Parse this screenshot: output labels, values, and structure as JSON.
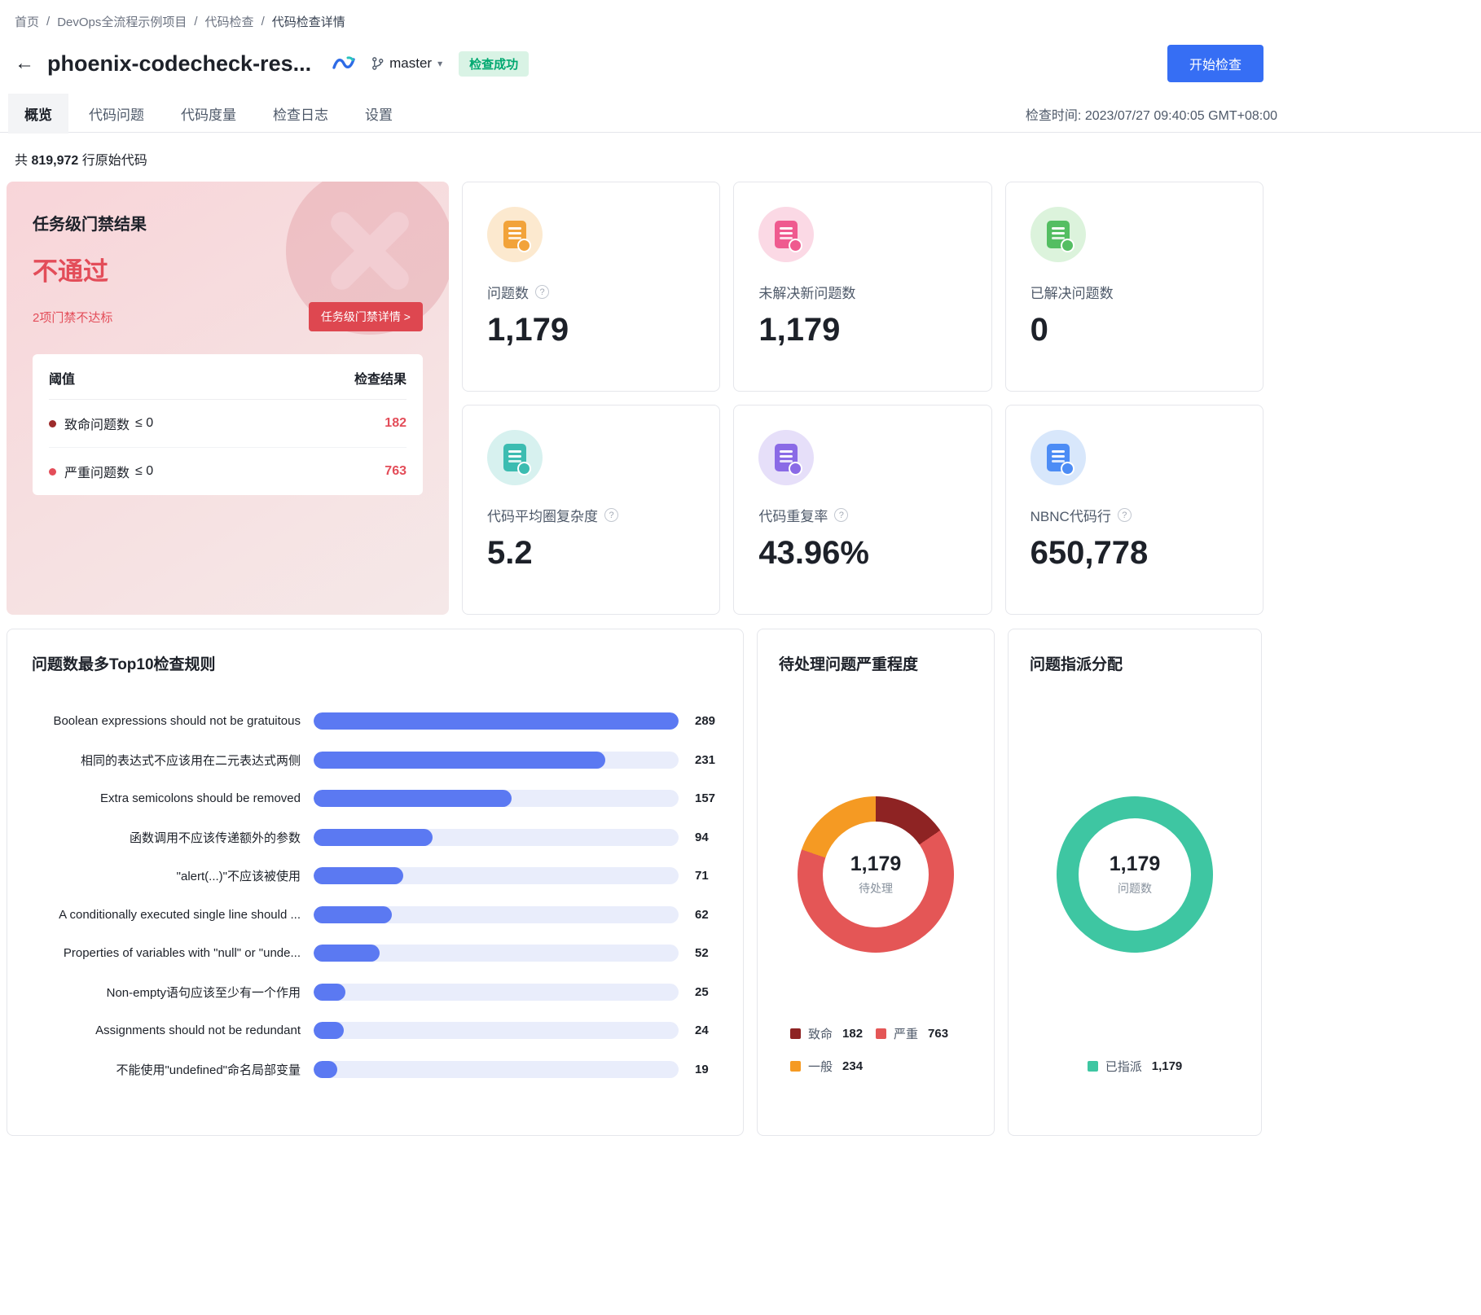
{
  "theme": {
    "accent_blue": "#366EF4",
    "danger_red": "#E34D59",
    "gate_button_bg": "#DE4750",
    "badge_bg": "#D9F3E5",
    "badge_text": "#00A870"
  },
  "icons": {
    "back": "←",
    "help": "?",
    "caret": "▾",
    "separator": "/"
  },
  "breadcrumb": {
    "items": [
      "首页",
      "DevOps全流程示例项目",
      "代码检查",
      "代码检查详情"
    ]
  },
  "header": {
    "title": "phoenix-codecheck-res...",
    "branch": "master",
    "status_badge": "检查成功",
    "start_button": "开始检查"
  },
  "tabs": {
    "items": [
      "概览",
      "代码问题",
      "代码度量",
      "检查日志",
      "设置"
    ],
    "active": "概览",
    "check_time": "检查时间: 2023/07/27 09:40:05 GMT+08:00"
  },
  "summary": {
    "prefix": "共",
    "count": "819,972",
    "suffix": "行原始代码"
  },
  "gate": {
    "title": "任务级门禁结果",
    "result": "不通过",
    "subtitle": "2项门禁不达标",
    "detail_button": "任务级门禁详情 >",
    "table": {
      "threshold_header": "阈值",
      "result_header": "检查结果",
      "rows": [
        {
          "name": "致命问题数",
          "op": "≤ 0",
          "value": "182",
          "dot_color": "#9D2B2B"
        },
        {
          "name": "严重问题数",
          "op": "≤ 0",
          "value": "763",
          "dot_color": "#E34D59"
        }
      ]
    }
  },
  "metrics": [
    {
      "label": "问题数",
      "value": "1,179",
      "has_help": true,
      "icon": "issues-icon",
      "icon_bg": "#FCE9CF",
      "icon_color": "#F2A33A"
    },
    {
      "label": "未解决新问题数",
      "value": "1,179",
      "has_help": false,
      "icon": "unresolved-icon",
      "icon_bg": "#FBD9E5",
      "icon_color": "#EF5A8F"
    },
    {
      "label": "已解决问题数",
      "value": "0",
      "has_help": false,
      "icon": "resolved-icon",
      "icon_bg": "#DCF3DC",
      "icon_color": "#54BE62"
    },
    {
      "label": "代码平均圈复杂度",
      "value": "5.2",
      "has_help": true,
      "icon": "complexity-icon",
      "icon_bg": "#D7F1EF",
      "icon_color": "#3CBCB1"
    },
    {
      "label": "代码重复率",
      "value": "43.96%",
      "has_help": true,
      "icon": "duplication-icon",
      "icon_bg": "#E6DFF9",
      "icon_color": "#8A6AE6"
    },
    {
      "label": "NBNC代码行",
      "value": "650,778",
      "has_help": true,
      "icon": "nbnc-icon",
      "icon_bg": "#D8E7FB",
      "icon_color": "#4C8CF5"
    }
  ],
  "chart_data": [
    {
      "type": "bar",
      "orientation": "horizontal",
      "title": "问题数最多Top10检查规则",
      "categories": [
        "Boolean expressions should not be gratuitous",
        "相同的表达式不应该用在二元表达式两侧",
        "Extra semicolons should be removed",
        "函数调用不应该传递额外的参数",
        "\"alert(...)\"不应该被使用",
        "A conditionally executed single line should ...",
        "Properties of variables with \"null\" or \"unde...",
        "Non-empty语句应该至少有一个作用",
        "Assignments should not be redundant",
        "不能使用\"undefined\"命名局部变量"
      ],
      "values": [
        289,
        231,
        157,
        94,
        71,
        62,
        52,
        25,
        24,
        19
      ],
      "xlim": [
        0,
        289
      ],
      "bar_color": "#5B79F2",
      "track_color": "#E9EDFB",
      "grid": false,
      "legend": false
    },
    {
      "type": "pie",
      "title": "待处理问题严重程度",
      "center_value": "1,179",
      "center_label": "待处理",
      "legend_position": "bottom",
      "slices": [
        {
          "label": "致命",
          "value": 182,
          "display": "182",
          "color": "#8E2323"
        },
        {
          "label": "严重",
          "value": 763,
          "display": "763",
          "color": "#E45656"
        },
        {
          "label": "一般",
          "value": 234,
          "display": "234",
          "color": "#F59A23"
        }
      ]
    },
    {
      "type": "pie",
      "title": "问题指派分配",
      "center_value": "1,179",
      "center_label": "问题数",
      "legend_position": "bottom",
      "slices": [
        {
          "label": "已指派",
          "value": 1179,
          "display": "1,179",
          "color": "#3EC6A2"
        }
      ]
    }
  ]
}
